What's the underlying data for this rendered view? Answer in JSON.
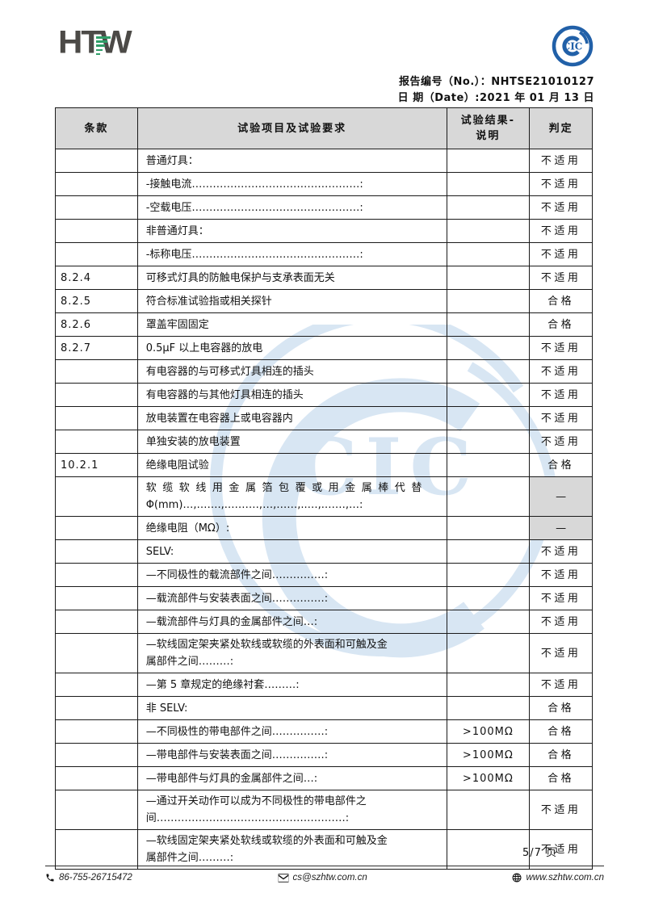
{
  "header": {
    "logo_text": "HTW",
    "cic_logo_text": "CIC",
    "report_no_label": "报告编号（No.）：",
    "report_no": "NHTSE21010127",
    "date_label": "日 期（Date）:",
    "date_value": "2021 年 01 月 13 日"
  },
  "watermark": {
    "text": "CIC"
  },
  "colors": {
    "brand_gray": "#4c4a47",
    "brand_green": "#2f9e68",
    "cic_blue": "#2160a8",
    "watermark_blue": "#b9d2ea",
    "shaded_gray": "#d8d8d8"
  },
  "table": {
    "columns": [
      "条款",
      "试验项目及试验要求",
      "试验结果-\n说明",
      "判定"
    ],
    "rows": [
      {
        "clause": "",
        "lines": [
          "普通灯具："
        ],
        "result": "",
        "verdict": "不适用"
      },
      {
        "clause": "",
        "lines": [
          "-接触电流…………………………………………:"
        ],
        "result": "",
        "verdict": "不适用"
      },
      {
        "clause": "",
        "lines": [
          "-空载电压…………………………………………:"
        ],
        "result": "",
        "verdict": "不适用"
      },
      {
        "clause": "",
        "lines": [
          "非普通灯具："
        ],
        "result": "",
        "verdict": "不适用"
      },
      {
        "clause": "",
        "lines": [
          "-标称电压…………………………………………:"
        ],
        "result": "",
        "verdict": "不适用"
      },
      {
        "clause": "8.2.4",
        "lines": [
          "可移式灯具的防触电保护与支承表面无关"
        ],
        "result": "",
        "verdict": "不适用"
      },
      {
        "clause": "8.2.5",
        "lines": [
          "符合标准试验指或相关探针"
        ],
        "result": "",
        "verdict": "合格"
      },
      {
        "clause": "8.2.6",
        "lines": [
          "罩盖牢固固定"
        ],
        "result": "",
        "verdict": "合格"
      },
      {
        "clause": "8.2.7",
        "lines": [
          "0.5μF 以上电容器的放电"
        ],
        "result": "",
        "verdict": "不适用"
      },
      {
        "clause": "",
        "lines": [
          "有电容器的与可移式灯具相连的插头"
        ],
        "result": "",
        "verdict": "不适用"
      },
      {
        "clause": "",
        "lines": [
          "有电容器的与其他灯具相连的插头"
        ],
        "result": "",
        "verdict": "不适用"
      },
      {
        "clause": "",
        "lines": [
          "放电装置在电容器上或电容器内"
        ],
        "result": "",
        "verdict": "不适用"
      },
      {
        "clause": "",
        "lines": [
          "单独安装的放电装置"
        ],
        "result": "",
        "verdict": "不适用"
      },
      {
        "clause": "10.2.1",
        "lines": [
          "绝缘电阻试验"
        ],
        "result": "",
        "verdict": "合格"
      },
      {
        "clause": "",
        "lines": [
          "软缆软线用金属箔包覆或用金属棒代替",
          "Φ(mm)…,…….,.………,…,……,..…,.……,…:"
        ],
        "result": "",
        "verdict": "—",
        "verdict_shaded": true,
        "spread_first": true
      },
      {
        "clause": "",
        "lines": [
          "绝缘电阻（MΩ）:"
        ],
        "result": "",
        "verdict": "—",
        "verdict_shaded": true
      },
      {
        "clause": "",
        "lines": [
          "SELV:"
        ],
        "result": "",
        "verdict": "不适用"
      },
      {
        "clause": "",
        "lines": [
          "—不同极性的载流部件之间……………:"
        ],
        "result": "",
        "verdict": "不适用"
      },
      {
        "clause": "",
        "lines": [
          "—载流部件与安装表面之间……………:"
        ],
        "result": "",
        "verdict": "不适用"
      },
      {
        "clause": "",
        "lines": [
          "—载流部件与灯具的金属部件之间…:"
        ],
        "result": "",
        "verdict": "不适用"
      },
      {
        "clause": "",
        "lines": [
          "—软线固定架夹紧处软线或软缆的外表面和可触及金",
          "属部件之间………:"
        ],
        "result": "",
        "verdict": "不适用"
      },
      {
        "clause": "",
        "lines": [
          "—第 5 章规定的绝缘衬套………:"
        ],
        "result": "",
        "verdict": "不适用"
      },
      {
        "clause": "",
        "lines": [
          "非 SELV:"
        ],
        "result": "",
        "verdict": "合格"
      },
      {
        "clause": "",
        "lines": [
          "—不同极性的带电部件之间……………:"
        ],
        "result": ">100MΩ",
        "verdict": "合格"
      },
      {
        "clause": "",
        "lines": [
          "—带电部件与安装表面之间……………:"
        ],
        "result": ">100MΩ",
        "verdict": "合格"
      },
      {
        "clause": "",
        "lines": [
          "—带电部件与灯具的金属部件之间…:"
        ],
        "result": ">100MΩ",
        "verdict": "合格"
      },
      {
        "clause": "",
        "lines": [
          "—通过开关动作可以成为不同极性的带电部件之",
          "间………………………………………………:"
        ],
        "result": "",
        "verdict": "不适用"
      },
      {
        "clause": "",
        "lines": [
          "—软线固定架夹紧处软线或软缆的外表面和可触及金",
          "属部件之间………:"
        ],
        "result": "",
        "verdict": "不适用"
      }
    ]
  },
  "footer": {
    "page": "5/7 页",
    "phone": "86-755-26715472",
    "email": "cs@szhtw.com.cn",
    "website": "www.szhtw.com.cn"
  }
}
